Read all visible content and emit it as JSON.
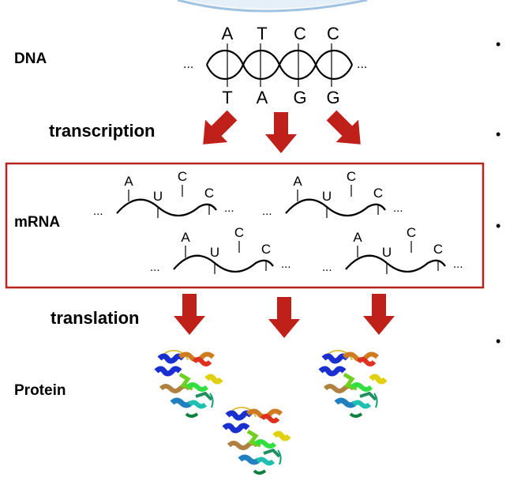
{
  "labels": {
    "dna": "DNA",
    "transcription": "transcription",
    "mrna": "mRNA",
    "translation": "translation",
    "protein": "Protein"
  },
  "dna": {
    "top_bases": [
      "A",
      "T",
      "C",
      "C"
    ],
    "bottom_bases": [
      "T",
      "A",
      "G",
      "G"
    ],
    "ellipsis": "..."
  },
  "mrna": {
    "bases": [
      "A",
      "U",
      "C",
      "C"
    ],
    "ellipsis": "..."
  },
  "bullets": [
    "•",
    "•",
    "•",
    "•"
  ],
  "colors": {
    "arrow": "#c0201a",
    "box_border": "#b8231c",
    "header_arc": "#9fc3e0"
  }
}
